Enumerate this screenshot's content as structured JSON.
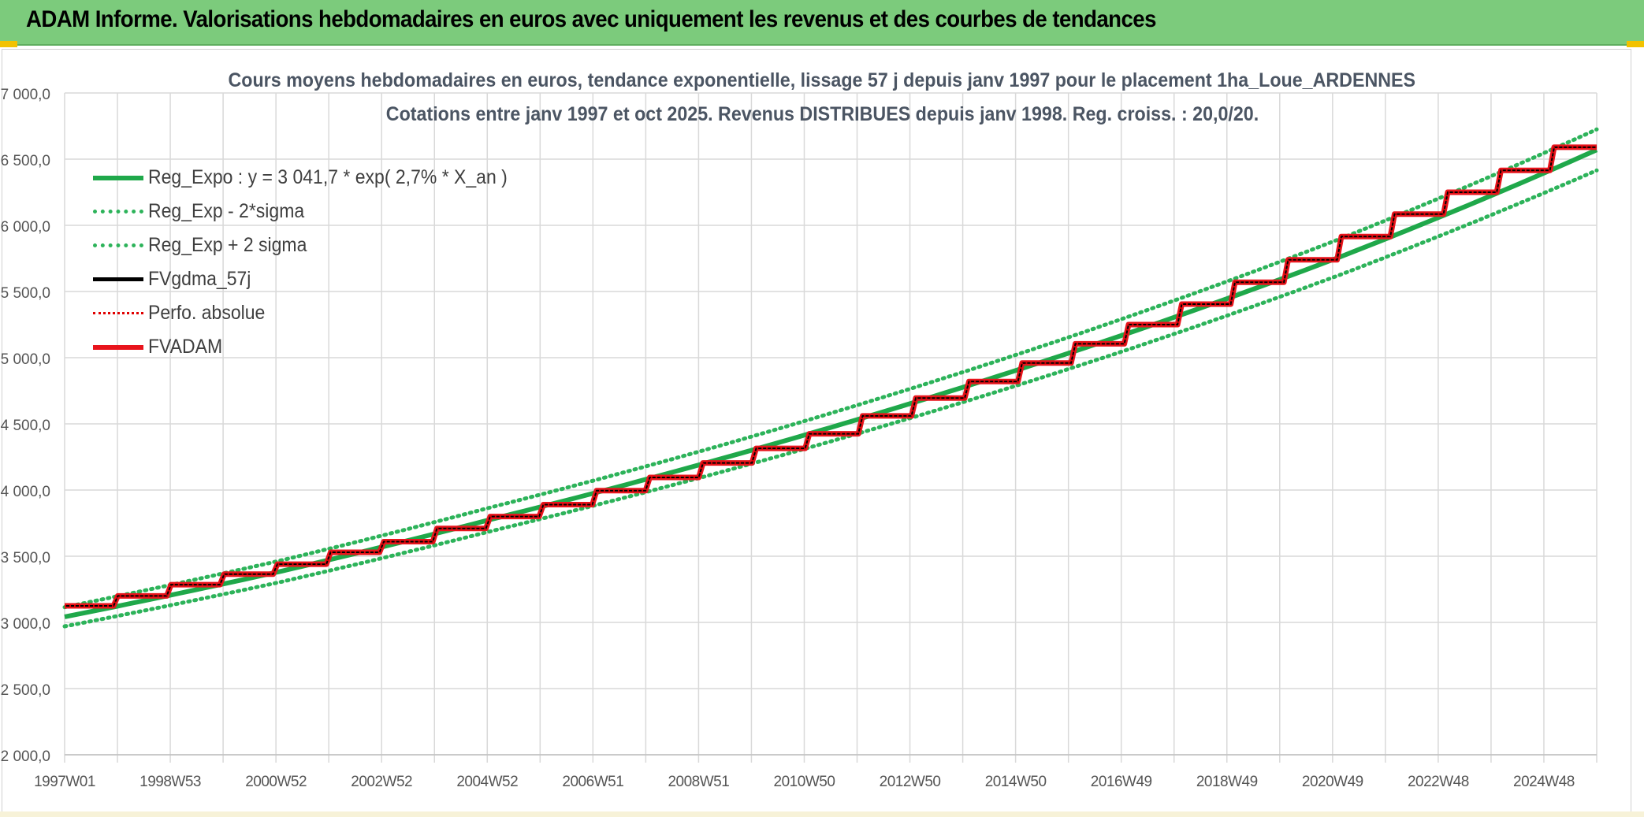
{
  "header": {
    "title": "ADAM Informe. Valorisations hebdomadaires en euros avec uniquement les revenus et des courbes de tendances"
  },
  "colors": {
    "header_bg": "#7ccb7c",
    "reg_expo": "#1fa84a",
    "reg_band": "#2db35a",
    "fv_gdma": "#000000",
    "perfo": "#e00000",
    "fvadam": "#e8141c",
    "grid": "#d9d9d9"
  },
  "chart_data": {
    "type": "line",
    "title": "Cours moyens hebdomadaires en euros, tendance exponentielle, lissage 57 j depuis janv 1997 pour le placement 1ha_Loue_ARDENNES",
    "subtitle": "Cotations entre janv 1997 et oct 2025. Revenus DISTRIBUES depuis janv 1998. Reg. croiss. : 20,0/20.",
    "xlabel": "",
    "ylabel": "",
    "ylim": [
      2000,
      7000
    ],
    "y_ticks": [
      "2 000,0",
      "2 500,0",
      "3 000,0",
      "3 500,0",
      "4 000,0",
      "4 500,0",
      "5 000,0",
      "5 500,0",
      "6 000,0",
      "6 500,0",
      "7 000,0"
    ],
    "x_tick_labels": [
      "1997W01",
      "1998W53",
      "2000W52",
      "2002W52",
      "2004W52",
      "2006W51",
      "2008W51",
      "2010W50",
      "2012W50",
      "2014W50",
      "2016W49",
      "2018W49",
      "2020W49",
      "2022W48",
      "2024W48"
    ],
    "x_range_years": [
      1997.0,
      2025.8
    ],
    "grid": true,
    "legend_position": "top-left",
    "series": [
      {
        "name": "Reg_Expo : y = 3 041,7 * exp( 2,7% *  X_an )",
        "style": "solid-thick",
        "color": "#1fa84a",
        "x": [
          1997.0,
          2001.0,
          2005.0,
          2009.0,
          2013.0,
          2017.0,
          2021.0,
          2025.8
        ],
        "values": [
          3042,
          3380,
          3777,
          4198,
          4666,
          5186,
          5765,
          6570
        ]
      },
      {
        "name": "Reg_Exp - 2*sigma",
        "style": "dotted",
        "color": "#2db35a",
        "x": [
          1997.0,
          2001.0,
          2005.0,
          2009.0,
          2013.0,
          2017.0,
          2021.0,
          2025.8
        ],
        "values": [
          2970,
          3300,
          3688,
          4099,
          4556,
          5063,
          5630,
          6415
        ]
      },
      {
        "name": "Reg_Exp + 2 sigma",
        "style": "dotted",
        "color": "#2db35a",
        "x": [
          1997.0,
          2001.0,
          2005.0,
          2009.0,
          2013.0,
          2017.0,
          2021.0,
          2025.8
        ],
        "values": [
          3115,
          3462,
          3868,
          4299,
          4778,
          5310,
          5902,
          6725
        ]
      },
      {
        "name": "FVgdma_57j",
        "style": "solid",
        "color": "#000000",
        "step_years": [
          1997,
          1998,
          1999,
          2000,
          2001,
          2002,
          2003,
          2004,
          2005,
          2006,
          2007,
          2008,
          2009,
          2010,
          2011,
          2012,
          2013,
          2014,
          2015,
          2016,
          2017,
          2018,
          2019,
          2020,
          2021,
          2022,
          2023,
          2024,
          2025
        ],
        "values": [
          3125,
          3200,
          3285,
          3365,
          3440,
          3530,
          3610,
          3710,
          3800,
          3890,
          3995,
          4095,
          4205,
          4315,
          4425,
          4560,
          4695,
          4820,
          4960,
          5105,
          5250,
          5405,
          5570,
          5740,
          5915,
          6085,
          6250,
          6415,
          6590
        ]
      },
      {
        "name": "Perfo. absolue",
        "style": "dotted",
        "color": "#e00000",
        "step_years": [
          1997,
          1998,
          1999,
          2000,
          2001,
          2002,
          2003,
          2004,
          2005,
          2006,
          2007,
          2008,
          2009,
          2010,
          2011,
          2012,
          2013,
          2014,
          2015,
          2016,
          2017,
          2018,
          2019,
          2020,
          2021,
          2022,
          2023,
          2024,
          2025
        ],
        "values": [
          3125,
          3200,
          3285,
          3365,
          3440,
          3530,
          3610,
          3710,
          3800,
          3890,
          3995,
          4095,
          4205,
          4315,
          4425,
          4560,
          4695,
          4820,
          4960,
          5105,
          5250,
          5405,
          5570,
          5740,
          5915,
          6085,
          6250,
          6415,
          6590
        ]
      },
      {
        "name": "FVADAM",
        "style": "solid-thick",
        "color": "#e8141c",
        "step_years": [
          1997,
          1998,
          1999,
          2000,
          2001,
          2002,
          2003,
          2004,
          2005,
          2006,
          2007,
          2008,
          2009,
          2010,
          2011,
          2012,
          2013,
          2014,
          2015,
          2016,
          2017,
          2018,
          2019,
          2020,
          2021,
          2022,
          2023,
          2024,
          2025
        ],
        "values": [
          3125,
          3200,
          3285,
          3365,
          3440,
          3530,
          3610,
          3710,
          3800,
          3890,
          3995,
          4095,
          4205,
          4315,
          4425,
          4560,
          4695,
          4820,
          4960,
          5105,
          5250,
          5405,
          5570,
          5740,
          5915,
          6085,
          6250,
          6415,
          6590
        ]
      }
    ]
  }
}
